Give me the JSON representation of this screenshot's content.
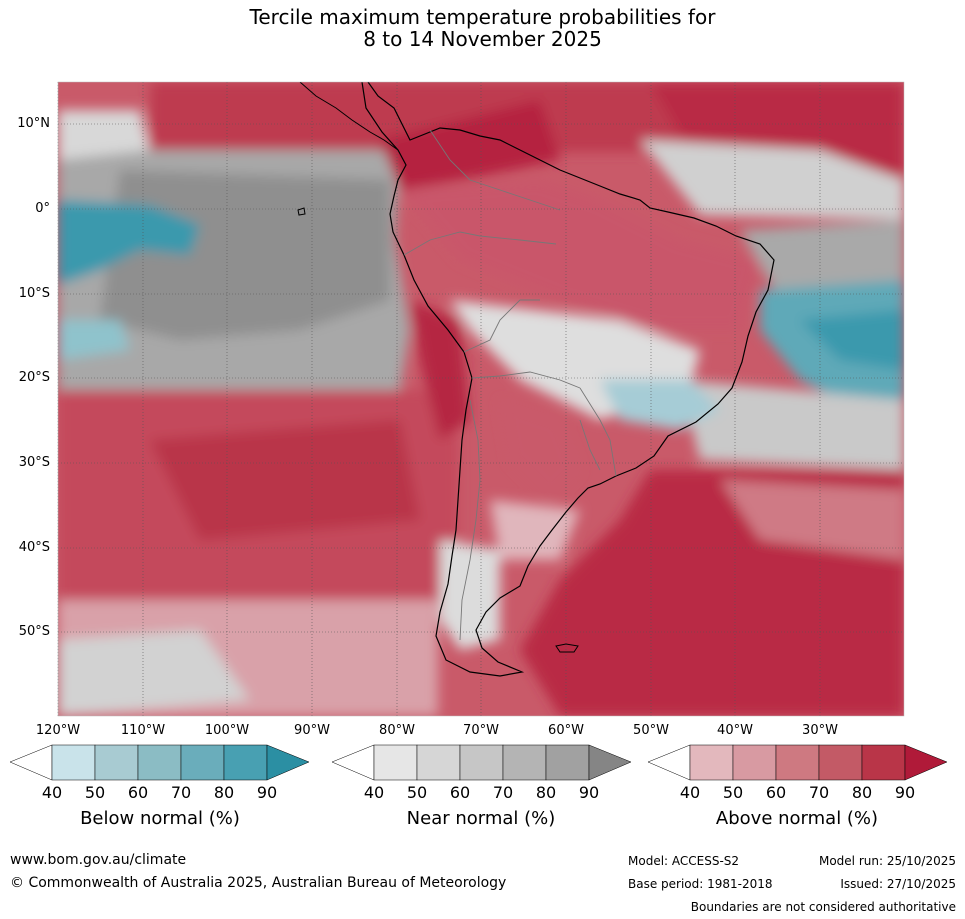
{
  "title": {
    "line1": "Tercile maximum temperature probabilities for",
    "line2": "8 to 14 November 2025"
  },
  "map": {
    "lat_labels": [
      "10°N",
      "0°",
      "10°S",
      "20°S",
      "30°S",
      "40°S",
      "50°S"
    ],
    "lon_labels": [
      "120°W",
      "110°W",
      "100°W",
      "90°W",
      "80°W",
      "70°W",
      "60°W",
      "50°W",
      "40°W",
      "30°W"
    ]
  },
  "legends": [
    {
      "name": "Below normal (%)",
      "ticks": [
        "40",
        "50",
        "60",
        "70",
        "80",
        "90"
      ],
      "colors": [
        "#ffffff",
        "#c9e3ea",
        "#a8cbd2",
        "#8bbcc4",
        "#6aadbb",
        "#48a0b2",
        "#2b8fa3"
      ]
    },
    {
      "name": "Near normal (%)",
      "ticks": [
        "40",
        "50",
        "60",
        "70",
        "80",
        "90"
      ],
      "colors": [
        "#ffffff",
        "#e6e6e6",
        "#d6d6d6",
        "#c6c6c6",
        "#b4b4b4",
        "#a1a1a1",
        "#858585"
      ]
    },
    {
      "name": "Above normal (%)",
      "ticks": [
        "40",
        "50",
        "60",
        "70",
        "80",
        "90"
      ],
      "colors": [
        "#ffffff",
        "#e3b8bd",
        "#d89aa2",
        "#ce7981",
        "#c35a66",
        "#b93548",
        "#b01a39"
      ]
    }
  ],
  "footer": {
    "website": "www.bom.gov.au/climate",
    "copyright": "© Commonwealth of Australia 2025, Australian Bureau of Meteorology",
    "model": "Model: ACCESS-S2",
    "model_run": "Model run: 25/10/2025",
    "base_period": "Base period: 1981-2018",
    "issued": "Issued: 27/10/2025",
    "disclaimer": "Boundaries are not considered authoritative"
  }
}
